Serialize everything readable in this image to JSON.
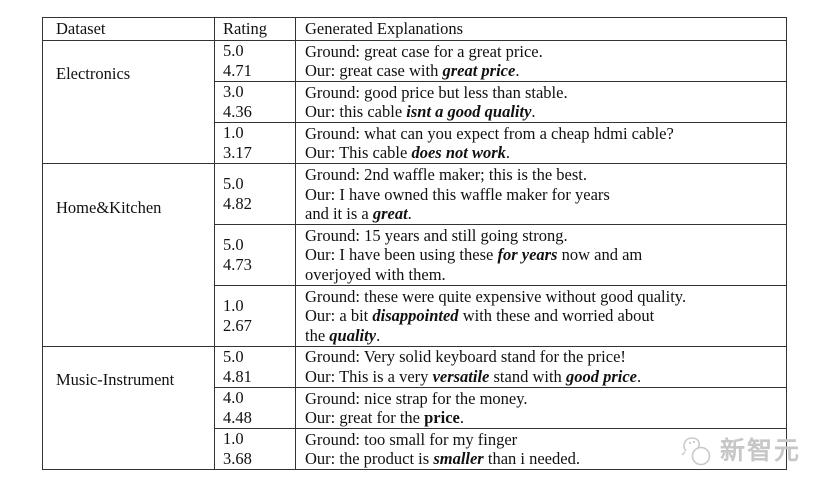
{
  "header": {
    "dataset": "Dataset",
    "rating": "Rating",
    "explanations": "Generated Explanations"
  },
  "groups": [
    {
      "dataset": "Electronics",
      "rows": [
        {
          "ratings": [
            "5.0",
            "4.71"
          ],
          "lines": [
            [
              {
                "t": "Ground: great case for a great price."
              }
            ],
            [
              {
                "t": "Our: great case with "
              },
              {
                "t": "great price",
                "s": "bi"
              },
              {
                "t": "."
              }
            ]
          ]
        },
        {
          "ratings": [
            "3.0",
            "4.36"
          ],
          "lines": [
            [
              {
                "t": "Ground: good price but less than stable."
              }
            ],
            [
              {
                "t": "Our: this cable "
              },
              {
                "t": "isnt a good quality",
                "s": "bi"
              },
              {
                "t": "."
              }
            ]
          ]
        },
        {
          "ratings": [
            "1.0",
            "3.17"
          ],
          "lines": [
            [
              {
                "t": "Ground: what can you expect from a cheap hdmi cable?"
              }
            ],
            [
              {
                "t": "Our: This cable "
              },
              {
                "t": "does not work",
                "s": "bi"
              },
              {
                "t": "."
              }
            ]
          ]
        }
      ]
    },
    {
      "dataset": "Home&Kitchen",
      "rows": [
        {
          "ratings": [
            "5.0",
            "4.82"
          ],
          "lines": [
            [
              {
                "t": "Ground: 2nd waffle maker; this is the best."
              }
            ],
            [
              {
                "t": "Our: I have owned this waffle maker for years"
              }
            ],
            [
              {
                "t": "and it is a "
              },
              {
                "t": "great",
                "s": "bi"
              },
              {
                "t": "."
              }
            ]
          ]
        },
        {
          "ratings": [
            "5.0",
            "4.73"
          ],
          "lines": [
            [
              {
                "t": "Ground: 15 years and still going strong."
              }
            ],
            [
              {
                "t": "Our: I have been using these "
              },
              {
                "t": "for years",
                "s": "bi"
              },
              {
                "t": " now and am"
              }
            ],
            [
              {
                "t": "overjoyed with them."
              }
            ]
          ]
        },
        {
          "ratings": [
            "1.0",
            "2.67"
          ],
          "lines": [
            [
              {
                "t": "Ground: these were quite expensive without good quality."
              }
            ],
            [
              {
                "t": "Our: a bit "
              },
              {
                "t": "disappointed",
                "s": "bi"
              },
              {
                "t": " with these and worried about"
              }
            ],
            [
              {
                "t": "the "
              },
              {
                "t": "quality",
                "s": "bi"
              },
              {
                "t": "."
              }
            ]
          ]
        }
      ]
    },
    {
      "dataset": "Music-Instrument",
      "rows": [
        {
          "ratings": [
            "5.0",
            "4.81"
          ],
          "lines": [
            [
              {
                "t": "Ground: Very solid keyboard stand for the price!"
              }
            ],
            [
              {
                "t": "Our: This is a very "
              },
              {
                "t": "versatile",
                "s": "bi"
              },
              {
                "t": " stand with "
              },
              {
                "t": "good price",
                "s": "bi"
              },
              {
                "t": "."
              }
            ]
          ]
        },
        {
          "ratings": [
            "4.0",
            "4.48"
          ],
          "lines": [
            [
              {
                "t": "Ground: nice strap for the money."
              }
            ],
            [
              {
                "t": "Our: great for the "
              },
              {
                "t": "price",
                "s": "b"
              },
              {
                "t": "."
              }
            ]
          ]
        },
        {
          "ratings": [
            "1.0",
            "3.68"
          ],
          "lines": [
            [
              {
                "t": "Ground: too small for my finger"
              }
            ],
            [
              {
                "t": "Our: the product is "
              },
              {
                "t": "smaller",
                "s": "bi"
              },
              {
                "t": " than i needed."
              }
            ]
          ]
        }
      ]
    }
  ],
  "watermark": {
    "text": "新智元",
    "color": "#c7c7c7"
  },
  "colors": {
    "border": "#333333",
    "text": "#111111",
    "background": "#ffffff"
  }
}
